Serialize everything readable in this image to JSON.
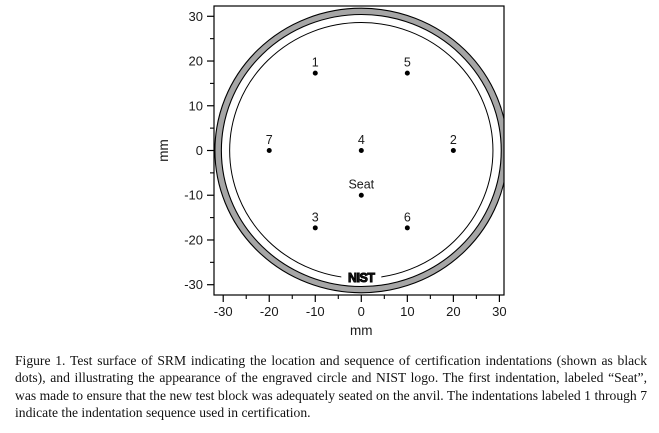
{
  "figure": {
    "caption": "Figure 1.  Test surface of SRM indicating the location and sequence of certification indentations (shown as black dots), and illustrating the appearance of the engraved circle and NIST logo.  The first indentation, labeled “Seat”, was made to ensure that the new test block was adequately seated on the anvil.  The indentations labeled 1 through 7 indicate the indentation sequence used in certification."
  },
  "chart_data": {
    "type": "scatter",
    "title": "",
    "xlabel": "mm",
    "ylabel": "mm",
    "xlim": [
      -32,
      31
    ],
    "ylim": [
      -32.3,
      32.3
    ],
    "x_major_ticks": [
      -30,
      -20,
      -10,
      0,
      10,
      20,
      30
    ],
    "y_major_ticks": [
      -30,
      -20,
      -10,
      0,
      10,
      20,
      30
    ],
    "x_minor_ticks": [
      -25,
      -15,
      -5,
      5,
      15,
      25
    ],
    "y_minor_ticks": [
      -25,
      -15,
      -5,
      5,
      15,
      25
    ],
    "grid": false,
    "legend": false,
    "points": [
      {
        "label": "1",
        "x": -10,
        "y": 17.3
      },
      {
        "label": "5",
        "x": 10,
        "y": 17.3
      },
      {
        "label": "7",
        "x": -20,
        "y": 0
      },
      {
        "label": "4",
        "x": 0,
        "y": 0
      },
      {
        "label": "2",
        "x": 20,
        "y": 0
      },
      {
        "label": "Seat",
        "x": 0,
        "y": -10
      },
      {
        "label": "3",
        "x": -10,
        "y": -17.3
      },
      {
        "label": "6",
        "x": 10,
        "y": -17.3
      }
    ],
    "engraved_circle_radius_mm": 28.6,
    "outer_ring": {
      "outer_radius_mm": 31.8,
      "inner_radius_mm": 30.4,
      "fill": "#a6a6a6"
    },
    "logo": {
      "text": "NIST",
      "x": 0,
      "y": -28.4
    }
  },
  "colors": {
    "line": "#000000",
    "ring_gray": "#a6a6a6",
    "text": "#1a1a1a",
    "background": "#ffffff"
  }
}
